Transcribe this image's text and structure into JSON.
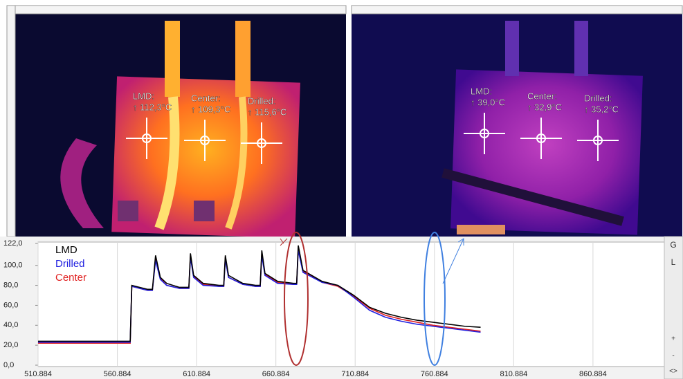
{
  "thermal_images": [
    {
      "markers": [
        {
          "label": "LMD:",
          "temperature": "↑ 112,3°C"
        },
        {
          "label": "Center:",
          "temperature": "↑ 109,3°C"
        },
        {
          "label": "Drilled:",
          "temperature": "↑ 115,6°C"
        }
      ]
    },
    {
      "markers": [
        {
          "label": "LMD:",
          "temperature": "↑ 39,0°C"
        },
        {
          "label": "Center:",
          "temperature": "↑ 32,9°C"
        },
        {
          "label": "Drilled:",
          "temperature": "↑ 35,2°C"
        }
      ]
    }
  ],
  "sidebar": [
    "G",
    "L",
    "+",
    "-",
    "<>"
  ],
  "chart_data": {
    "type": "line",
    "x": [
      510.884,
      569,
      570,
      575,
      580,
      583,
      585,
      588,
      592,
      600,
      606,
      607,
      609,
      615,
      625,
      628,
      629,
      631,
      640,
      648,
      651,
      652,
      654,
      662,
      672,
      674,
      675,
      678,
      690,
      700,
      710,
      720,
      730,
      740,
      750,
      760,
      770,
      780,
      790
    ],
    "series": [
      {
        "name": "LMD",
        "color": "#000000",
        "values": [
          24,
          24,
          80,
          78,
          76,
          76,
          110,
          88,
          82,
          78,
          78,
          112,
          90,
          82,
          80,
          80,
          110,
          90,
          82,
          80,
          80,
          115,
          92,
          84,
          82,
          82,
          120,
          95,
          84,
          80,
          70,
          58,
          52,
          48,
          45,
          43,
          41,
          39,
          38
        ]
      },
      {
        "name": "Drilled",
        "color": "#2020e0",
        "values": [
          23,
          23,
          79,
          77,
          75,
          75,
          105,
          86,
          80,
          77,
          77,
          108,
          88,
          80,
          79,
          79,
          106,
          88,
          81,
          79,
          79,
          110,
          90,
          82,
          81,
          81,
          115,
          93,
          83,
          80,
          68,
          55,
          48,
          44,
          41,
          39,
          37,
          35,
          33
        ]
      },
      {
        "name": "Center",
        "color": "#e02020",
        "values": [
          22,
          22,
          79,
          77,
          75,
          75,
          107,
          87,
          80,
          77,
          77,
          110,
          89,
          81,
          79,
          79,
          108,
          88,
          81,
          79,
          79,
          112,
          91,
          83,
          81,
          81,
          117,
          94,
          83,
          79,
          69,
          57,
          50,
          46,
          43,
          40,
          38,
          36,
          34
        ]
      }
    ],
    "xlim": [
      510.884,
      905.884
    ],
    "ylim": [
      0,
      122
    ],
    "xticks": [
      510.884,
      560.884,
      610.884,
      660.884,
      710.884,
      760.884,
      810.884,
      860.884
    ],
    "yticks": [
      {
        "value": 0,
        "label": "0,0"
      },
      {
        "value": 20,
        "label": "20,0"
      },
      {
        "value": 40,
        "label": "40,0"
      },
      {
        "value": 60,
        "label": "60,0"
      },
      {
        "value": 80,
        "label": "80,0"
      },
      {
        "value": 100,
        "label": "100,0"
      },
      {
        "value": 122,
        "label": "122,0"
      }
    ],
    "grid": true,
    "legend": "upper-left"
  }
}
